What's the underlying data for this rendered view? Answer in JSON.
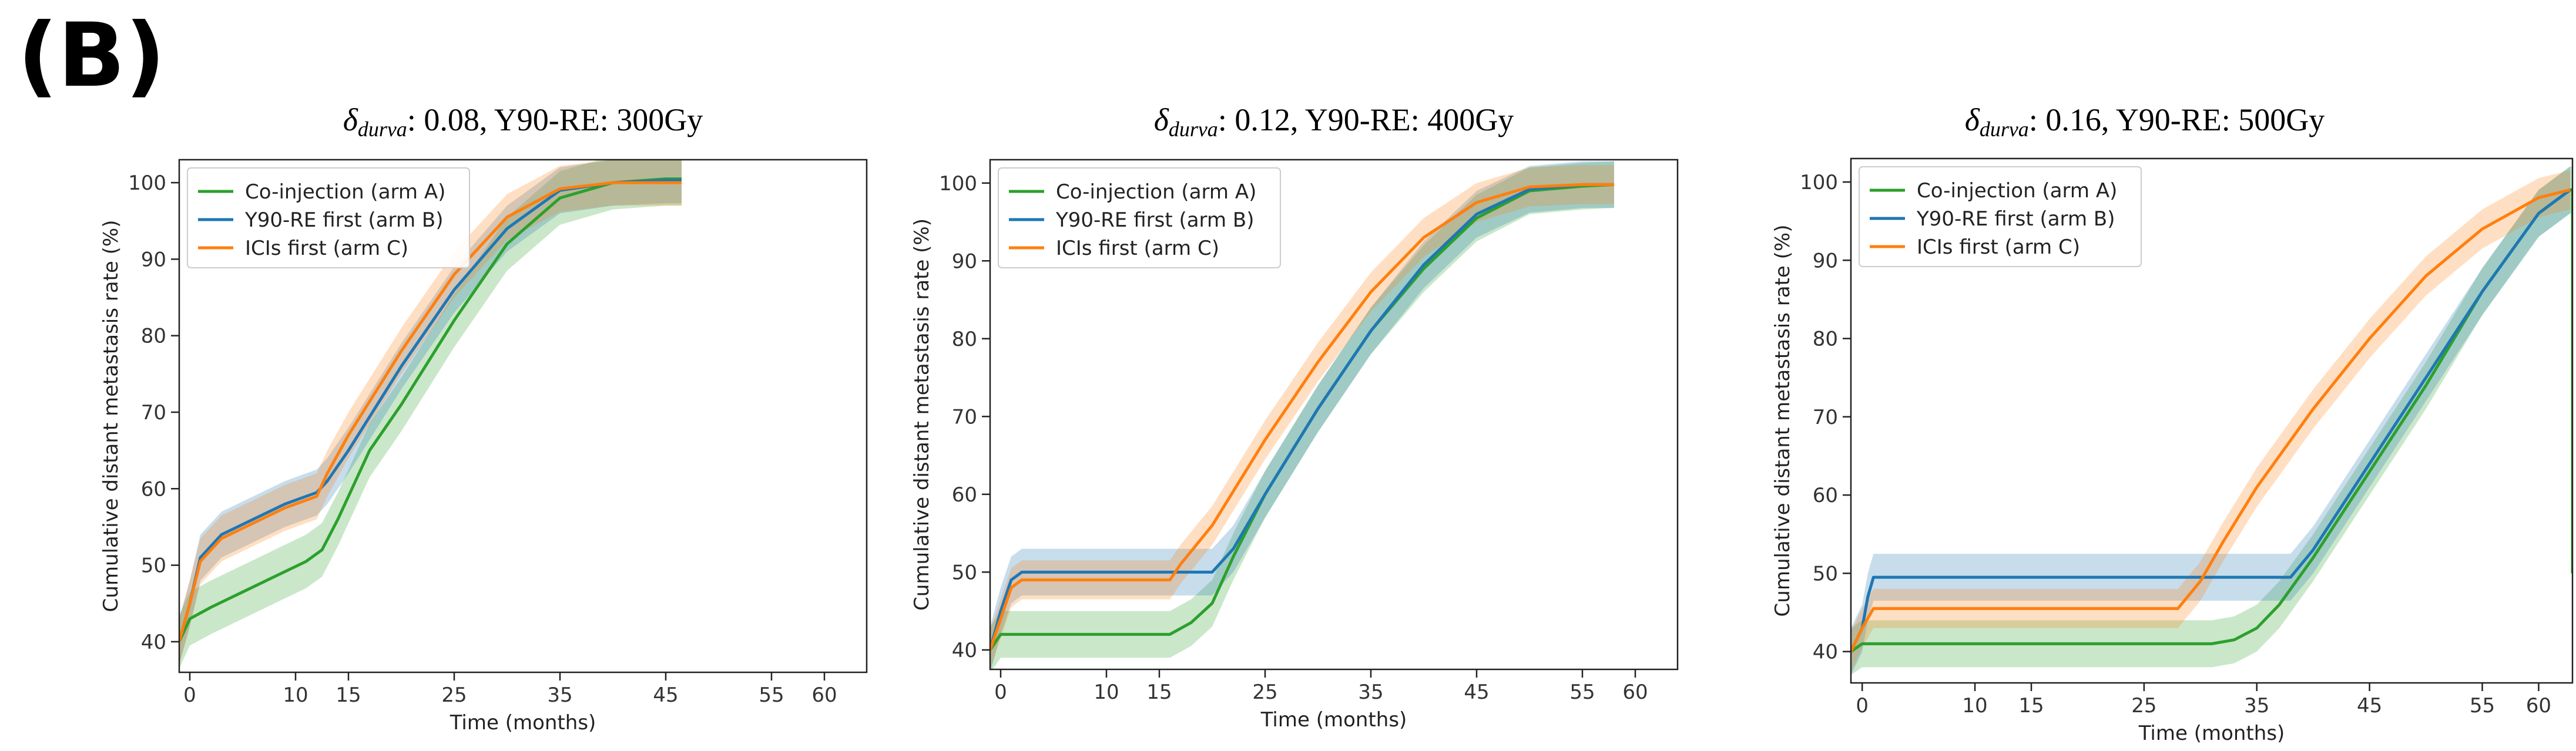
{
  "panel_label": "(B)",
  "colors": {
    "arm_a": "#2ca02c",
    "arm_b": "#1f77b4",
    "arm_c": "#ff7f0e"
  },
  "chart_data": [
    {
      "type": "line",
      "title": {
        "delta_symbol": "δ",
        "delta_subscript": "durva",
        "delta_value": ": 0.08, ",
        "rest": "Y90-RE: 300Gy"
      },
      "xlabel": "Time (months)",
      "ylabel": "Cumulative distant metastasis rate (%)",
      "xlim": [
        -1,
        64
      ],
      "ylim": [
        36,
        103
      ],
      "xticks": [
        0,
        10,
        15,
        25,
        35,
        45,
        55,
        60
      ],
      "yticks": [
        40,
        50,
        60,
        70,
        80,
        90,
        100
      ],
      "legend_position": "top-left",
      "series": [
        {
          "name": "Co-injection (arm A)",
          "color_key": "arm_a",
          "band": 3.5,
          "x": [
            -1,
            0,
            2,
            5,
            8,
            11,
            12.5,
            14,
            17,
            20,
            25,
            30,
            35,
            40,
            45,
            46.5
          ],
          "y": [
            40,
            43,
            44.5,
            46.5,
            48.5,
            50.5,
            52,
            56,
            65,
            71,
            82,
            92,
            98,
            100,
            100.5,
            100.5
          ]
        },
        {
          "name": "Y90-RE first (arm B)",
          "color_key": "arm_b",
          "band": 3,
          "x": [
            -1,
            0,
            1,
            3,
            6,
            9,
            12,
            13,
            15,
            20,
            25,
            30,
            35,
            40,
            45,
            46.5
          ],
          "y": [
            40,
            45,
            51,
            54,
            56,
            58,
            59.5,
            61,
            65,
            76,
            86,
            94,
            99,
            100,
            100.3,
            100.3
          ]
        },
        {
          "name": "ICIs first (arm C)",
          "color_key": "arm_c",
          "band": 3,
          "x": [
            -1,
            0,
            1,
            3,
            6,
            9,
            12,
            13,
            15,
            20,
            25,
            30,
            35,
            40,
            45,
            46.5
          ],
          "y": [
            40,
            45,
            50.5,
            53.5,
            55.5,
            57.5,
            59,
            62,
            67,
            78,
            88,
            95.5,
            99.2,
            100,
            100,
            100
          ]
        }
      ]
    },
    {
      "type": "line",
      "title": {
        "delta_symbol": "δ",
        "delta_subscript": "durva",
        "delta_value": ": 0.12, ",
        "rest": "Y90-RE: 400Gy"
      },
      "xlabel": "Time (months)",
      "ylabel": "Cumulative distant metastasis rate (%)",
      "xlim": [
        -1,
        64
      ],
      "ylim": [
        37.5,
        103
      ],
      "xticks": [
        0,
        10,
        15,
        25,
        35,
        45,
        55,
        60
      ],
      "yticks": [
        40,
        50,
        60,
        70,
        80,
        90,
        100
      ],
      "legend_position": "top-left",
      "series": [
        {
          "name": "Co-injection (arm A)",
          "color_key": "arm_a",
          "band": 3,
          "x": [
            -1,
            0,
            1,
            16,
            18,
            20,
            22,
            25,
            30,
            35,
            40,
            45,
            50,
            55,
            58
          ],
          "y": [
            40,
            42,
            42,
            42,
            43.5,
            46,
            52,
            60,
            71,
            81,
            89,
            95.5,
            99,
            99.6,
            99.8
          ]
        },
        {
          "name": "Y90-RE first (arm B)",
          "color_key": "arm_b",
          "band": 3,
          "x": [
            -1,
            0,
            1,
            2,
            20,
            22,
            25,
            30,
            35,
            40,
            45,
            50,
            55,
            58
          ],
          "y": [
            40,
            45,
            49,
            50,
            50,
            53,
            60,
            71,
            81,
            89.5,
            96,
            99.2,
            99.8,
            99.8
          ]
        },
        {
          "name": "ICIs first (arm C)",
          "color_key": "arm_c",
          "band": 2.5,
          "x": [
            -1,
            0,
            1,
            2,
            16,
            17,
            20,
            25,
            30,
            35,
            40,
            45,
            50,
            55,
            58
          ],
          "y": [
            40,
            44,
            48,
            49,
            49,
            51,
            56,
            67,
            77,
            86,
            93,
            97.5,
            99.5,
            99.8,
            99.8
          ]
        }
      ]
    },
    {
      "type": "line",
      "title": {
        "delta_symbol": "δ",
        "delta_subscript": "durva",
        "delta_value": ": 0.16, ",
        "rest": "Y90-RE: 500Gy"
      },
      "xlabel": "Time (months)",
      "ylabel": "Cumulative distant metastasis rate (%)",
      "xlim": [
        -1,
        63
      ],
      "ylim": [
        36,
        103
      ],
      "xticks": [
        0,
        10,
        15,
        25,
        35,
        45,
        55,
        60
      ],
      "yticks": [
        40,
        50,
        60,
        70,
        80,
        90,
        100
      ],
      "legend_position": "top-left",
      "series": [
        {
          "name": "Co-injection (arm A)",
          "color_key": "arm_a",
          "band": 3,
          "x": [
            -1,
            0,
            1,
            31,
            33,
            35,
            37,
            40,
            45,
            50,
            55,
            60,
            62.8,
            63,
            63
          ],
          "y": [
            40,
            41,
            41,
            41,
            41.5,
            43,
            46,
            52,
            63,
            74,
            86,
            96,
            99,
            99,
            50
          ]
        },
        {
          "name": "Y90-RE first (arm B)",
          "color_key": "arm_b",
          "band": 3,
          "x": [
            -1,
            0,
            0.5,
            1,
            38,
            40,
            45,
            50,
            55,
            60,
            62.8
          ],
          "y": [
            40,
            43,
            47,
            49.5,
            49.5,
            53,
            64,
            75,
            86,
            96,
            99
          ]
        },
        {
          "name": "ICIs first (arm C)",
          "color_key": "arm_c",
          "band": 2.5,
          "x": [
            -1,
            0,
            1,
            28,
            30,
            32,
            35,
            40,
            45,
            50,
            55,
            60,
            62.8
          ],
          "y": [
            40,
            43,
            45.5,
            45.5,
            49,
            54,
            61,
            71,
            80,
            88,
            94,
            98,
            99
          ]
        }
      ]
    }
  ]
}
